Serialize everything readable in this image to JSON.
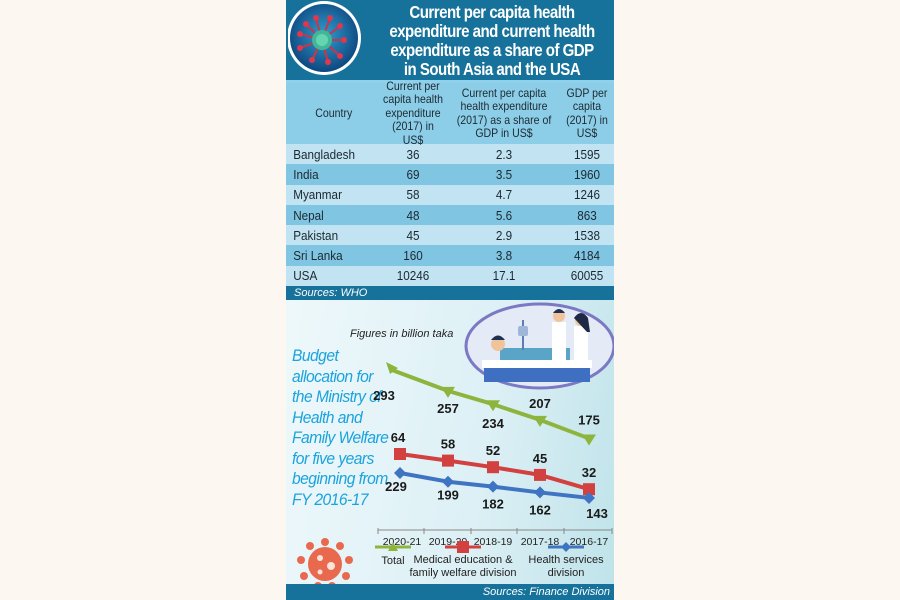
{
  "header": {
    "title": "Current per capita health\nexpenditure and current health\nexpenditure as a share of GDP\nin South Asia and the USA",
    "badge_icon": "virus-icon"
  },
  "table": {
    "columns": [
      "Country",
      "Current per capita health expenditure (2017) in US$",
      "Current per capita health expenditure (2017) as a share of GDP in US$",
      "GDP per capita (2017) in US$"
    ],
    "rows": [
      {
        "country": "Bangladesh",
        "per_capita": "36",
        "share_gdp": "2.3",
        "gdp_per_capita": "1595"
      },
      {
        "country": "India",
        "per_capita": "69",
        "share_gdp": "3.5",
        "gdp_per_capita": "1960"
      },
      {
        "country": "Myanmar",
        "per_capita": "58",
        "share_gdp": "4.7",
        "gdp_per_capita": "1246"
      },
      {
        "country": "Nepal",
        "per_capita": "48",
        "share_gdp": "5.6",
        "gdp_per_capita": "863"
      },
      {
        "country": "Pakistan",
        "per_capita": "45",
        "share_gdp": "2.9",
        "gdp_per_capita": "1538"
      },
      {
        "country": "Sri Lanka",
        "per_capita": "160",
        "share_gdp": "3.8",
        "gdp_per_capita": "4184"
      },
      {
        "country": "USA",
        "per_capita": "10246",
        "share_gdp": "17.1",
        "gdp_per_capita": "60055"
      }
    ],
    "source": "Sources: WHO"
  },
  "chart_data": [
    {
      "type": "table",
      "title": "Current per capita health expenditure and current health expenditure as a share of GDP in South Asia and the USA",
      "columns": [
        "Country",
        "Current per capita health expenditure (2017) in US$",
        "Current per capita health expenditure (2017) as a share of GDP in US$",
        "GDP per capita (2017) in US$"
      ],
      "rows": [
        [
          "Bangladesh",
          36,
          2.3,
          1595
        ],
        [
          "India",
          69,
          3.5,
          1960
        ],
        [
          "Myanmar",
          58,
          4.7,
          1246
        ],
        [
          "Nepal",
          48,
          5.6,
          863
        ],
        [
          "Pakistan",
          45,
          2.9,
          1538
        ],
        [
          "Sri Lanka",
          160,
          3.8,
          4184
        ],
        [
          "USA",
          10246,
          17.1,
          60055
        ]
      ],
      "source": "Sources: WHO"
    },
    {
      "type": "line",
      "title": "Budget allocation for the Ministry of Health and Family Welfare for five years beginning from FY 2016-17",
      "subtitle": "Figures in billion taka",
      "xlabel": "",
      "ylabel": "",
      "categories": [
        "2020-21",
        "2019-20",
        "2018-19",
        "2017-18",
        "2016-17"
      ],
      "series": [
        {
          "name": "Total",
          "color": "#8db53e",
          "marker": "triangle",
          "values": [
            293,
            257,
            234,
            207,
            175
          ]
        },
        {
          "name": "Medical education & family welfare division",
          "color": "#d2403f",
          "marker": "square",
          "values": [
            64,
            58,
            52,
            45,
            32
          ]
        },
        {
          "name": "Health services division",
          "color": "#3f74c2",
          "marker": "diamond",
          "values": [
            229,
            199,
            182,
            162,
            143
          ]
        }
      ],
      "legend": "bottom",
      "grid": false,
      "source": "Sources: Finance Division"
    }
  ],
  "chart": {
    "note": "Figures in billion taka",
    "side_title": "Budget\nallocation for\nthe Ministry of\nHealth and\nFamily Welfare\nfor five years\nbeginning from\nFY 2016-17",
    "legend": [
      "Total",
      "Medical education &",
      "family welfare division",
      "Health services",
      "division"
    ],
    "source": "Sources: Finance Division"
  },
  "colors": {
    "header_blue": "#16729a",
    "total": "#8db53e",
    "medical": "#d2403f",
    "health": "#3f74c2",
    "side_title": "#1aa3dc"
  }
}
